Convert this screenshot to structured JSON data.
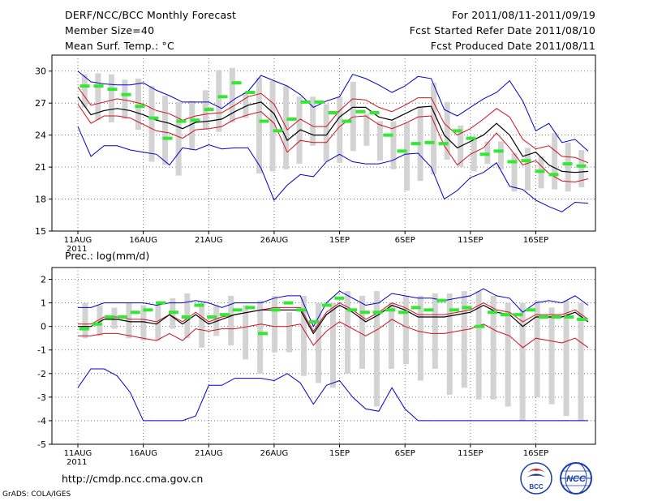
{
  "header": {
    "title": "DERF/NCC/BCC Monthly Forecast",
    "member_size": "Member Size=40",
    "variable": "Mean Surf. Temp.: °C",
    "period": "For 2011/08/11-2011/09/19",
    "start_date": "Fcst Started Refer Date 2011/08/10",
    "produced_date": "Fcst Produced Date 2011/08/11"
  },
  "footer": {
    "url": "http://cmdp.ncc.cma.gov.cn",
    "grads_credit": "GrADS: COLA/IGES",
    "logo_bcc": "BCC",
    "logo_ncc": "NCC"
  },
  "colors": {
    "ensemble_bar": "#d3d3d3",
    "member_mark": "#33e833",
    "mean_line": "#000000",
    "spread_line": "#d01020",
    "extreme_line": "#0000c8",
    "grid": "#555555"
  },
  "chart_data": [
    {
      "type": "line",
      "title": "Mean Surf. Temp.: °C",
      "x_tick_labels": [
        "11AUG",
        "16AUG",
        "21AUG",
        "26AUG",
        "1SEP",
        "6SEP",
        "11SEP",
        "16SEP"
      ],
      "x_year_label": "2011",
      "y_ticks": [
        15,
        18,
        21,
        24,
        27,
        30
      ],
      "ylim": [
        15,
        31.5
      ],
      "days": 40,
      "series": [
        {
          "name": "ensemble_max",
          "values": [
            30.0,
            29.0,
            28.8,
            28.7,
            28.7,
            28.9,
            28.2,
            27.7,
            27.1,
            27.1,
            27.1,
            26.5,
            27.4,
            28.1,
            29.6,
            29.1,
            28.6,
            27.8,
            26.6,
            27.2,
            27.6,
            29.7,
            29.3,
            28.7,
            28.0,
            28.6,
            29.5,
            29.3,
            26.4,
            25.8,
            26.6,
            27.4,
            28.0,
            29.1,
            27.2,
            24.4,
            25.1,
            23.3,
            23.6,
            22.5
          ]
        },
        {
          "name": "upper_spread",
          "values": [
            28.5,
            26.8,
            27.1,
            27.4,
            27.2,
            26.9,
            26.3,
            26.0,
            25.4,
            25.8,
            26.0,
            26.1,
            26.8,
            27.6,
            27.9,
            26.9,
            24.5,
            25.5,
            24.8,
            24.8,
            26.3,
            27.4,
            27.3,
            26.6,
            26.2,
            26.8,
            27.5,
            27.5,
            25.1,
            24.0,
            24.6,
            25.5,
            26.5,
            25.7,
            23.6,
            22.7,
            23.0,
            22.0,
            21.9,
            21.4
          ]
        },
        {
          "name": "ensemble_mean",
          "values": [
            27.6,
            25.9,
            26.3,
            26.5,
            26.3,
            25.9,
            25.4,
            25.1,
            24.6,
            25.2,
            25.3,
            25.5,
            26.2,
            26.8,
            27.1,
            26.0,
            23.5,
            24.5,
            24.0,
            24.0,
            25.7,
            26.6,
            26.6,
            25.7,
            25.4,
            26.0,
            26.6,
            26.7,
            24.0,
            22.8,
            23.4,
            24.0,
            25.1,
            24.0,
            22.0,
            22.4,
            21.2,
            20.6,
            20.5,
            20.6
          ]
        },
        {
          "name": "lower_spread",
          "values": [
            26.9,
            25.1,
            25.8,
            25.8,
            25.6,
            25.0,
            24.4,
            24.2,
            23.7,
            24.5,
            24.6,
            24.8,
            25.5,
            25.9,
            26.2,
            25.1,
            22.4,
            23.5,
            23.3,
            23.3,
            24.8,
            25.7,
            25.8,
            25.0,
            24.6,
            25.1,
            25.7,
            25.8,
            23.0,
            21.2,
            22.2,
            22.8,
            24.2,
            22.8,
            21.2,
            21.6,
            20.4,
            19.7,
            19.6,
            19.9
          ]
        },
        {
          "name": "ensemble_min",
          "values": [
            24.8,
            22.0,
            23.0,
            23.0,
            22.6,
            22.4,
            22.2,
            21.2,
            22.8,
            22.6,
            23.1,
            22.7,
            22.8,
            22.8,
            20.9,
            17.9,
            19.3,
            20.3,
            20.1,
            21.5,
            22.2,
            21.5,
            21.3,
            21.3,
            21.6,
            22.2,
            22.3,
            21.0,
            18.0,
            18.8,
            20.0,
            20.5,
            21.4,
            19.2,
            18.9,
            17.9,
            17.3,
            16.8,
            17.7,
            17.6
          ]
        }
      ],
      "member_marks": [
        28.6,
        28.6,
        28.3,
        27.8,
        26.7,
        25.6,
        23.7,
        25.3,
        25.4,
        26.4,
        27.6,
        28.9,
        28.0,
        25.3,
        24.4,
        25.5,
        27.1,
        27.1,
        26.1,
        25.3,
        26.2,
        26.1,
        24.0,
        22.5,
        23.2,
        23.3,
        23.2,
        24.4,
        23.7,
        22.2,
        22.5,
        21.5,
        21.6,
        20.6,
        20.3,
        21.3,
        21.1
      ],
      "bars_low": [
        26.6,
        25.4,
        25.2,
        25.5,
        24.5,
        21.5,
        21.2,
        20.2,
        22.6,
        24.5,
        24.3,
        25.2,
        25.6,
        20.4,
        20.6,
        20.8,
        21.3,
        23.0,
        21.5,
        21.4,
        22.5,
        23.0,
        21.6,
        20.8,
        18.8,
        19.7,
        20.3,
        21.7,
        21.0,
        20.6,
        21.3,
        20.8,
        18.7,
        18.8,
        19.0,
        18.9,
        18.7,
        19.1
      ],
      "bars_high": [
        29.7,
        29.8,
        29.7,
        29.2,
        29.3,
        28.6,
        27.7,
        27.1,
        27.2,
        28.2,
        30.1,
        30.3,
        28.0,
        29.4,
        29.1,
        28.6,
        27.6,
        27.6,
        26.9,
        27.6,
        29.0,
        26.0,
        25.3,
        25.3,
        25.2,
        26.6,
        28.9,
        27.1,
        24.9,
        23.7,
        23.4,
        23.4,
        22.3,
        22.8,
        22.0,
        24.2,
        23.3,
        22.6
      ]
    },
    {
      "type": "line",
      "title": "Prec.: log(mm/d)",
      "x_tick_labels": [
        "11AUG",
        "16AUG",
        "21AUG",
        "26AUG",
        "1SEP",
        "6SEP",
        "11SEP",
        "16SEP"
      ],
      "x_year_label": "2011",
      "y_ticks": [
        -5,
        -4,
        -3,
        -2,
        -1,
        0,
        1,
        2
      ],
      "ylim": [
        -5,
        2.5
      ],
      "days": 40,
      "series": [
        {
          "name": "ensemble_max",
          "values": [
            0.8,
            0.8,
            1.0,
            1.0,
            1.0,
            1.0,
            0.9,
            1.0,
            1.0,
            1.1,
            1.0,
            0.8,
            1.0,
            1.0,
            1.0,
            1.2,
            1.3,
            1.3,
            0.0,
            1.0,
            1.5,
            1.2,
            0.9,
            1.0,
            1.4,
            1.3,
            1.2,
            1.2,
            1.1,
            1.2,
            1.3,
            1.6,
            1.3,
            1.2,
            0.6,
            1.0,
            1.1,
            1.0,
            1.3,
            0.9
          ]
        },
        {
          "name": "upper_spread",
          "values": [
            0.1,
            0.1,
            0.4,
            0.4,
            0.3,
            0.3,
            0.2,
            0.5,
            0.2,
            0.6,
            0.2,
            0.4,
            0.5,
            0.6,
            0.7,
            0.8,
            0.8,
            0.8,
            -0.2,
            0.6,
            1.0,
            0.7,
            0.3,
            0.6,
            1.0,
            0.8,
            0.5,
            0.5,
            0.5,
            0.6,
            0.7,
            1.0,
            0.7,
            0.6,
            0.2,
            0.5,
            0.5,
            0.5,
            0.7,
            0.3
          ]
        },
        {
          "name": "ensemble_mean",
          "values": [
            0.0,
            0.0,
            0.3,
            0.3,
            0.2,
            0.2,
            0.1,
            0.5,
            0.1,
            0.5,
            0.1,
            0.3,
            0.5,
            0.6,
            0.7,
            0.7,
            0.7,
            0.7,
            -0.3,
            0.5,
            0.9,
            0.6,
            0.2,
            0.5,
            0.9,
            0.7,
            0.4,
            0.4,
            0.4,
            0.5,
            0.6,
            0.9,
            0.6,
            0.5,
            0.0,
            0.4,
            0.4,
            0.4,
            0.6,
            0.2
          ]
        },
        {
          "name": "lower_spread",
          "values": [
            -0.4,
            -0.4,
            -0.3,
            -0.3,
            -0.4,
            -0.5,
            -0.6,
            -0.3,
            -0.6,
            -0.1,
            -0.2,
            -0.1,
            -0.1,
            0.0,
            0.1,
            0.0,
            0.0,
            0.1,
            -0.8,
            -0.2,
            0.2,
            -0.1,
            -0.4,
            -0.1,
            0.3,
            0.0,
            -0.2,
            -0.3,
            -0.3,
            -0.2,
            -0.1,
            0.1,
            -0.2,
            -0.4,
            -0.9,
            -0.5,
            -0.6,
            -0.7,
            -0.5,
            -0.9
          ]
        },
        {
          "name": "ensemble_min",
          "values": [
            -2.6,
            -1.8,
            -1.8,
            -2.1,
            -2.8,
            -4.0,
            -4.0,
            -4.0,
            -4.0,
            -3.8,
            -2.5,
            -2.5,
            -2.2,
            -2.2,
            -2.2,
            -2.3,
            -2.0,
            -2.4,
            -3.3,
            -2.5,
            -2.3,
            -3.0,
            -3.5,
            -3.6,
            -2.6,
            -3.5,
            -4.0,
            -4.0,
            -4.0,
            -4.0,
            -4.0,
            -4.0,
            -4.0,
            -4.0,
            -4.0,
            -4.0,
            -4.0,
            -4.0,
            -4.0,
            -4.0
          ]
        }
      ],
      "member_marks": [
        -0.1,
        0.1,
        0.4,
        0.4,
        0.6,
        0.7,
        1.0,
        0.6,
        0.4,
        0.9,
        0.4,
        0.5,
        0.7,
        0.8,
        -0.3,
        0.7,
        1.0,
        0.7,
        0.2,
        0.9,
        1.2,
        0.7,
        0.6,
        0.6,
        0.7,
        0.6,
        0.8,
        0.7,
        1.1,
        0.7,
        0.8,
        0.0,
        0.6,
        0.5,
        0.5,
        0.7,
        0.4,
        0.4,
        0.4,
        0.3
      ],
      "bars_low": [
        -0.5,
        -0.4,
        -0.1,
        -0.5,
        -0.6,
        -0.6,
        -0.1,
        -0.5,
        -0.9,
        -0.4,
        -0.8,
        -1.4,
        -2.0,
        -1.1,
        -1.1,
        -2.1,
        -2.4,
        -2.6,
        -2.0,
        -1.8,
        -3.4,
        -1.8,
        -1.6,
        -2.3,
        -1.8,
        -2.9,
        -2.6,
        -3.1,
        -3.1,
        -3.4,
        -4.0,
        -3.0,
        -3.3,
        -3.8,
        -4.0
      ],
      "bars_high": [
        1.0,
        0.9,
        0.8,
        1.0,
        0.9,
        0.9,
        1.2,
        1.4,
        1.0,
        0.9,
        1.3,
        0.9,
        1.1,
        1.3,
        0.6,
        1.3,
        1.0,
        1.0,
        1.5,
        1.3,
        1.5,
        1.0,
        1.3,
        1.3,
        1.4,
        1.4,
        1.5,
        1.5,
        1.3,
        1.0,
        1.0,
        1.1,
        0.8,
        1.1,
        1.0
      ]
    }
  ]
}
